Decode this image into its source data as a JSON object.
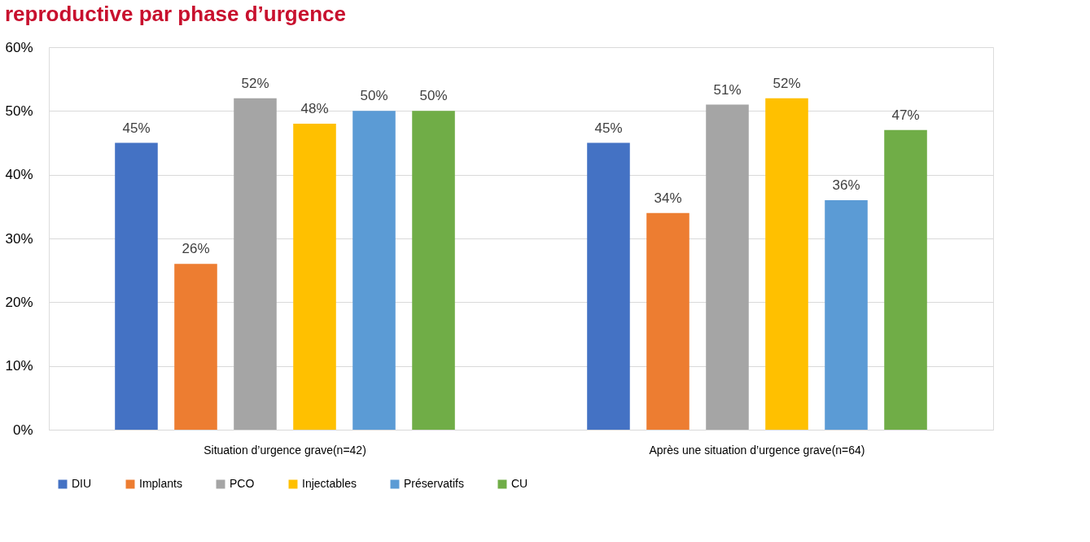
{
  "chart_data": {
    "type": "bar",
    "title": "reproductive par phase d’urgence",
    "categories": [
      "Situation d’urgence grave(n=42)",
      "Après une situation d’urgence grave(n=64)"
    ],
    "series": [
      {
        "name": "DIU",
        "color": "#4472c4",
        "values": [
          45,
          45
        ],
        "value_labels": [
          "45%",
          "45%"
        ]
      },
      {
        "name": "Implants",
        "color": "#ed7d31",
        "values": [
          26,
          34
        ],
        "value_labels": [
          "26%",
          "34%"
        ]
      },
      {
        "name": "PCO",
        "color": "#a5a5a5",
        "values": [
          52,
          51
        ],
        "value_labels": [
          "52%",
          "51%"
        ]
      },
      {
        "name": "Injectables",
        "color": "#ffc000",
        "values": [
          48,
          52
        ],
        "value_labels": [
          "48%",
          "52%"
        ]
      },
      {
        "name": "Préservatifs",
        "color": "#5b9bd5",
        "values": [
          50,
          36
        ],
        "value_labels": [
          "50%",
          "36%"
        ]
      },
      {
        "name": "CU",
        "color": "#70ad47",
        "values": [
          50,
          47
        ],
        "value_labels": [
          "50%",
          "47%"
        ]
      }
    ],
    "ylim": [
      0,
      60
    ],
    "yticks": [
      {
        "value": 0,
        "label": "0%"
      },
      {
        "value": 10,
        "label": "10%"
      },
      {
        "value": 20,
        "label": "20%"
      },
      {
        "value": 30,
        "label": "30%"
      },
      {
        "value": 40,
        "label": "40%"
      },
      {
        "value": 50,
        "label": "50%"
      },
      {
        "value": 60,
        "label": "60%"
      }
    ],
    "grid": "y",
    "legend": "bottom"
  }
}
